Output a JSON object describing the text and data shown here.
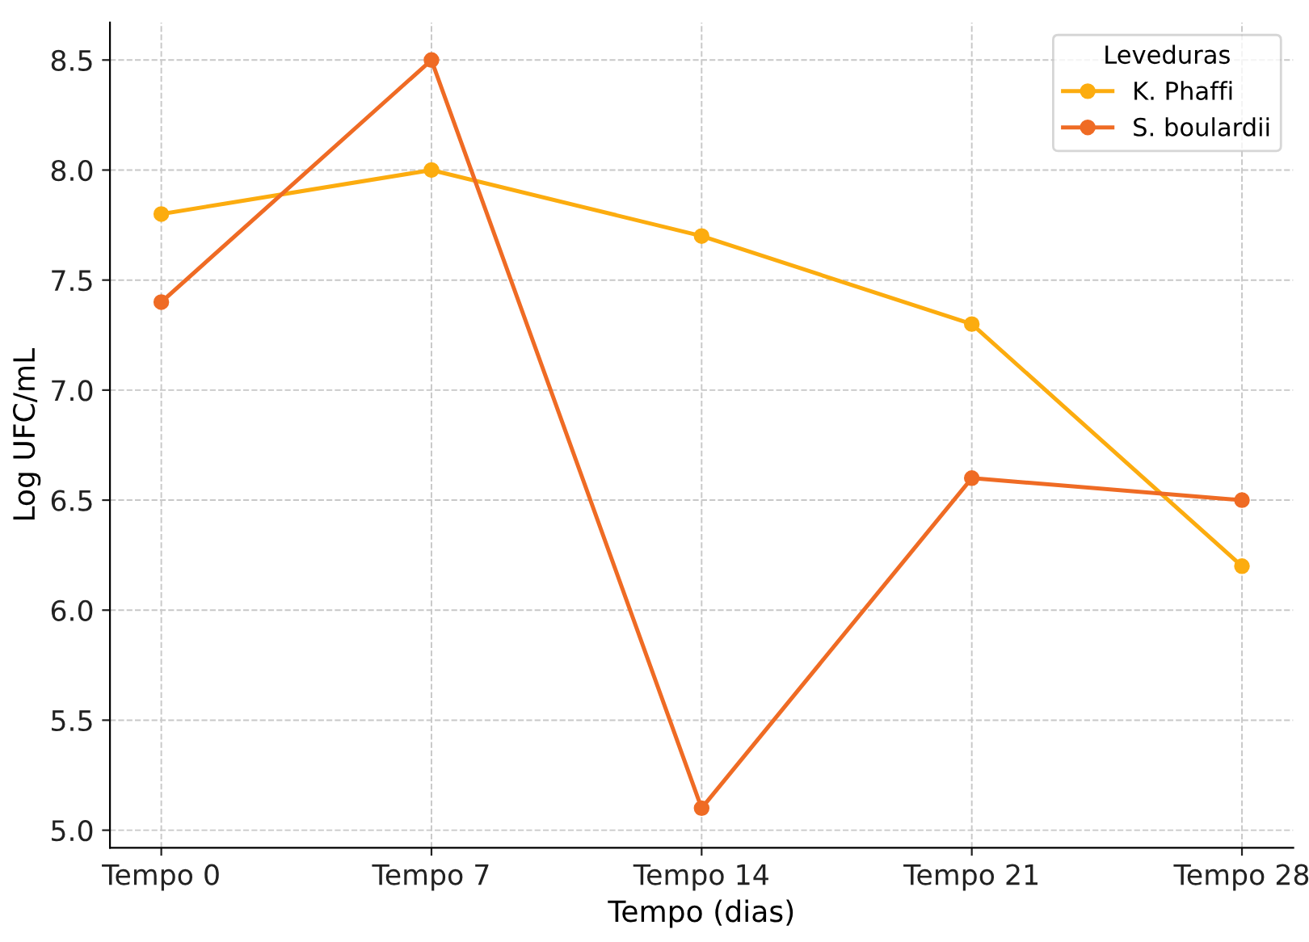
{
  "chart_data": {
    "type": "line",
    "xlabel": "Tempo (dias)",
    "ylabel": "Log UFC/mL",
    "legend_title": "Leveduras",
    "categories": [
      "Tempo 0",
      "Tempo 7",
      "Tempo 14",
      "Tempo 21",
      "Tempo 28"
    ],
    "series": [
      {
        "name": "K. Phaffi",
        "color": "#fcac0f",
        "values": [
          7.8,
          8.0,
          7.7,
          7.3,
          6.2
        ]
      },
      {
        "name": "S. boulardii",
        "color": "#ef6b24",
        "values": [
          7.4,
          8.5,
          5.1,
          6.6,
          6.5
        ]
      }
    ],
    "ylim": [
      4.92,
      8.67
    ],
    "yticks": [
      {
        "value": 5.0,
        "label": "5.0"
      },
      {
        "value": 5.5,
        "label": "5.5"
      },
      {
        "value": 6.0,
        "label": "6.0"
      },
      {
        "value": 6.5,
        "label": "6.5"
      },
      {
        "value": 7.0,
        "label": "7.0"
      },
      {
        "value": 7.5,
        "label": "7.5"
      },
      {
        "value": 8.0,
        "label": "8.0"
      },
      {
        "value": 8.5,
        "label": "8.5"
      }
    ],
    "grid": true,
    "legend": "top right",
    "marker": "circle",
    "line_style": "solid"
  }
}
